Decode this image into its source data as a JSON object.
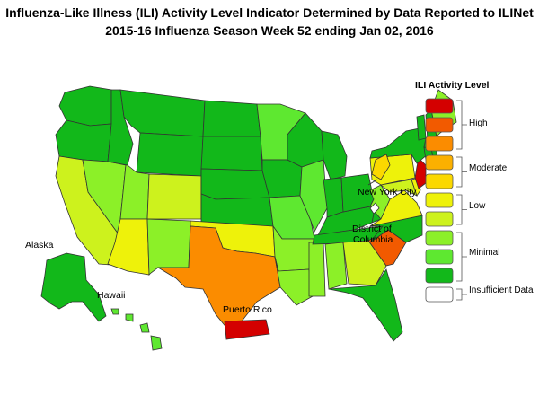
{
  "header": {
    "title_line1": "Influenza-Like Illness (ILI) Activity Level Indicator Determined by Data Reported to ILINet",
    "title_line2": "2015-16  Influenza Season Week  52 ending Jan 02, 2016"
  },
  "legend": {
    "title": "ILI Activity Level",
    "levels": [
      {
        "level": 10,
        "color": "#d40000"
      },
      {
        "level": 9,
        "color": "#f25a00"
      },
      {
        "level": 8,
        "color": "#fb8c00"
      },
      {
        "level": 7,
        "color": "#fbb000"
      },
      {
        "level": 6,
        "color": "#fbd800"
      },
      {
        "level": 5,
        "color": "#eef20a"
      },
      {
        "level": 4,
        "color": "#cdf21d"
      },
      {
        "level": 3,
        "color": "#8cf028"
      },
      {
        "level": 2,
        "color": "#5ee830"
      },
      {
        "level": 1,
        "color": "#12b81a"
      },
      {
        "level": 0,
        "color": "#ffffff"
      }
    ],
    "groups": [
      "High",
      "Moderate",
      "Low",
      "Minimal",
      "Insufficient Data"
    ]
  },
  "labels": {
    "alaska": "Alaska",
    "hawaii": "Hawaii",
    "puerto_rico": "Puerto Rico",
    "nyc": "New York City",
    "dc_line1": "District of",
    "dc_line2": "Columbia"
  },
  "states": {
    "WA": 1,
    "OR": 1,
    "CA": 4,
    "NV": 3,
    "ID": 1,
    "MT": 1,
    "WY": 1,
    "UT": 3,
    "AZ": 5,
    "CO": 4,
    "NM": 3,
    "ND": 1,
    "SD": 1,
    "NE": 1,
    "KS": 1,
    "OK": 5,
    "TX": 8,
    "MN": 2,
    "IA": 1,
    "MO": 2,
    "AR": 3,
    "LA": 3,
    "WI": 1,
    "IL": 2,
    "MS": 3,
    "MI": 1,
    "IN": 1,
    "KY": 1,
    "TN": 1,
    "AL": 3,
    "OH": 1,
    "WV": 3,
    "GA": 4,
    "FL": 1,
    "SC": 9,
    "NC": 1,
    "VA": 5,
    "PA": 5,
    "NY": 1,
    "VT": 1,
    "NH": 1,
    "ME": 3,
    "MA": 1,
    "RI": 1,
    "CT": 1,
    "NJ": 10,
    "DE": 5,
    "MD": 4,
    "NYC": 6,
    "DC": 0,
    "AK": 1,
    "HI": 2,
    "PR": 10
  }
}
